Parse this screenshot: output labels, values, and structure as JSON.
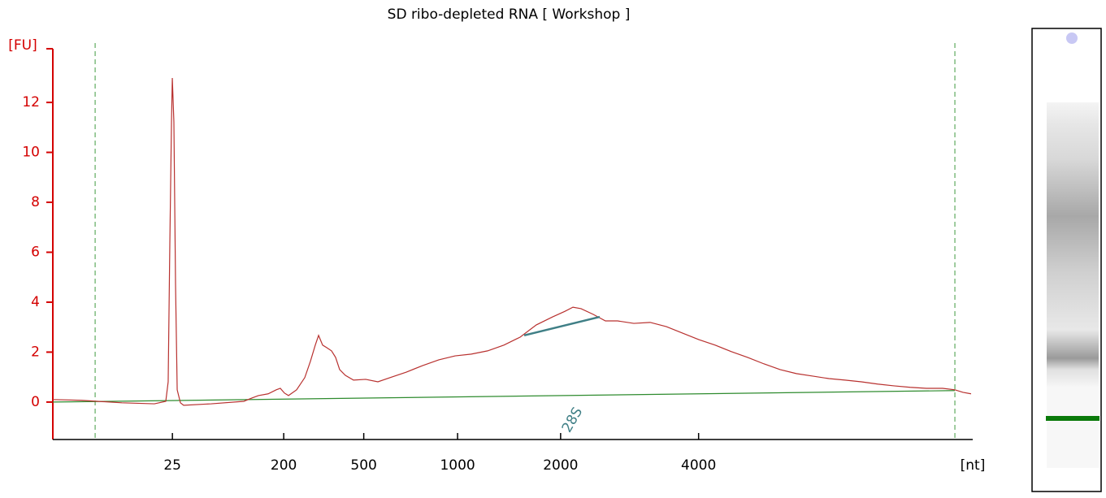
{
  "chart_data": {
    "type": "line",
    "title": "SD ribo-depleted RNA  [ Workshop ]",
    "ylabel": "[FU]",
    "xlabel": "[nt]",
    "x": [
      0.0,
      3.09,
      7.51,
      11.04,
      12.28,
      12.54,
      12.72,
      12.9,
      12.99,
      13.16,
      13.34,
      13.52,
      13.87,
      14.22,
      17.23,
      20.76,
      21.64,
      22.35,
      23.41,
      24.29,
      24.73,
      25.18,
      25.62,
      26.5,
      27.39,
      28.0,
      28.53,
      28.89,
      29.33,
      29.77,
      30.3,
      30.74,
      31.18,
      31.8,
      32.69,
      34.01,
      35.34,
      36.66,
      38.43,
      40.19,
      41.96,
      43.73,
      45.49,
      47.26,
      49.03,
      50.8,
      52.56,
      54.33,
      55.65,
      56.54,
      57.42,
      58.75,
      60.07,
      61.4,
      63.16,
      64.93,
      66.7,
      68.46,
      70.23,
      72.0,
      73.76,
      75.53,
      77.3,
      79.06,
      80.83,
      82.6,
      84.36,
      86.13,
      87.9,
      89.66,
      91.43,
      93.2,
      94.96,
      96.73,
      98.06,
      98.94,
      99.82
    ],
    "values": [
      0.1,
      0.07,
      -0.03,
      -0.07,
      0.03,
      0.81,
      6.34,
      11.22,
      12.98,
      11.22,
      4.72,
      0.49,
      -0.03,
      -0.13,
      -0.07,
      0.03,
      0.16,
      0.26,
      0.33,
      0.49,
      0.55,
      0.36,
      0.26,
      0.49,
      0.98,
      1.63,
      2.28,
      2.67,
      2.28,
      2.18,
      2.05,
      1.79,
      1.3,
      1.07,
      0.88,
      0.91,
      0.81,
      0.98,
      1.2,
      1.46,
      1.69,
      1.85,
      1.92,
      2.05,
      2.28,
      2.6,
      3.09,
      3.41,
      3.63,
      3.8,
      3.74,
      3.51,
      3.25,
      3.25,
      3.15,
      3.19,
      3.02,
      2.76,
      2.5,
      2.28,
      2.02,
      1.79,
      1.53,
      1.3,
      1.14,
      1.04,
      0.94,
      0.88,
      0.81,
      0.72,
      0.65,
      0.59,
      0.55,
      0.55,
      0.49,
      0.39,
      0.33
    ],
    "color": "#b8312f",
    "axis_color": "#d40000",
    "baseline": {
      "x": [
        0.0,
        98.06
      ],
      "values": [
        0.0,
        0.46
      ],
      "color": "#2e8b2e"
    },
    "fit": {
      "x": [
        51.24,
        59.45
      ],
      "values": [
        2.67,
        3.41
      ],
      "color": "#3f7f86"
    },
    "annotation": "28S",
    "markers": [
      4.6,
      98.06
    ],
    "xlim": [
      0,
      100
    ],
    "ylim": [
      -1.5,
      14.15
    ],
    "xticks": [
      {
        "value": 13.0,
        "label": "25"
      },
      {
        "value": 25.1,
        "label": "200"
      },
      {
        "value": 33.8,
        "label": "500"
      },
      {
        "value": 44.0,
        "label": "1000"
      },
      {
        "value": 55.2,
        "label": "2000"
      },
      {
        "value": 70.2,
        "label": "4000"
      }
    ],
    "yticks": [
      0,
      2,
      4,
      6,
      8,
      10,
      12
    ]
  }
}
